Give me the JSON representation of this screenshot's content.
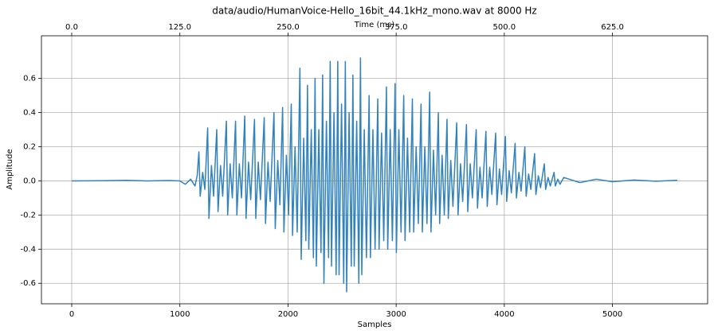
{
  "chart_data": {
    "type": "line",
    "title": "data/audio/HumanVoice-Hello_16bit_44.1kHz_mono.wav at  8000 Hz",
    "xlabel": "Samples",
    "ylabel": "Amplitude",
    "x2label": "Time (ms)",
    "xlim": [
      -280,
      5880
    ],
    "ylim": [
      -0.72,
      0.85
    ],
    "x2lim": [
      -35,
      735
    ],
    "xticks": [
      0,
      1000,
      2000,
      3000,
      4000,
      5000
    ],
    "yticks": [
      -0.6,
      -0.4,
      -0.2,
      {
        "value": 0,
        "label": "0.0"
      },
      0.2,
      0.4,
      0.6
    ],
    "x2ticks": [
      {
        "value": 0,
        "label": "0.0"
      },
      {
        "value": 125,
        "label": "125.0"
      },
      {
        "value": 250,
        "label": "250.0"
      },
      {
        "value": 375,
        "label": "375.0"
      },
      {
        "value": 500,
        "label": "500.0"
      },
      {
        "value": 625,
        "label": "625.0"
      }
    ],
    "grid": true,
    "series": [
      {
        "color": "#3182bd",
        "x": [
          0,
          300,
          500,
          700,
          900,
          1000,
          1050,
          1100,
          1140,
          1160,
          1176,
          1188,
          1211,
          1231,
          1257,
          1269,
          1292,
          1312,
          1341,
          1353,
          1376,
          1396,
          1430,
          1442,
          1465,
          1485,
          1515,
          1527,
          1550,
          1570,
          1600,
          1612,
          1635,
          1655,
          1690,
          1702,
          1725,
          1745,
          1780,
          1792,
          1815,
          1835,
          1870,
          1882,
          1905,
          1925,
          1950,
          1962,
          1985,
          2005,
          2030,
          2042,
          2065,
          2085,
          2110,
          2122,
          2145,
          2165,
          2180,
          2192,
          2215,
          2235,
          2250,
          2262,
          2285,
          2305,
          2320,
          2332,
          2355,
          2375,
          2390,
          2402,
          2425,
          2445,
          2460,
          2472,
          2495,
          2515,
          2530,
          2542,
          2565,
          2585,
          2600,
          2612,
          2635,
          2655,
          2670,
          2682,
          2705,
          2725,
          2750,
          2762,
          2785,
          2805,
          2830,
          2842,
          2865,
          2885,
          2910,
          2922,
          2945,
          2965,
          2990,
          3002,
          3025,
          3045,
          3070,
          3082,
          3105,
          3125,
          3150,
          3162,
          3185,
          3205,
          3230,
          3242,
          3265,
          3285,
          3310,
          3322,
          3345,
          3365,
          3390,
          3402,
          3425,
          3445,
          3470,
          3482,
          3505,
          3525,
          3560,
          3572,
          3595,
          3615,
          3650,
          3662,
          3685,
          3705,
          3740,
          3752,
          3775,
          3795,
          3830,
          3842,
          3865,
          3885,
          3920,
          3932,
          3955,
          3975,
          4010,
          4022,
          4045,
          4065,
          4100,
          4112,
          4135,
          4155,
          4190,
          4202,
          4225,
          4245,
          4280,
          4292,
          4315,
          4335,
          4370,
          4382,
          4405,
          4425,
          4460,
          4472,
          4495,
          4515,
          4550,
          4700,
          4850,
          5000,
          5200,
          5400,
          5600
        ],
        "values": [
          0,
          0.001,
          0.003,
          0,
          0.002,
          0,
          -0.02,
          0.01,
          -0.03,
          0.03,
          0.17,
          -0.09,
          0.05,
          -0.05,
          0.31,
          -0.22,
          0.09,
          -0.09,
          0.3,
          -0.18,
          0.09,
          -0.09,
          0.35,
          -0.2,
          0.1,
          -0.1,
          0.35,
          -0.2,
          0.1,
          -0.1,
          0.38,
          -0.22,
          0.11,
          -0.11,
          0.36,
          -0.22,
          0.11,
          -0.11,
          0.37,
          -0.25,
          0.11,
          -0.12,
          0.4,
          -0.28,
          0.12,
          -0.14,
          0.43,
          -0.3,
          0.15,
          -0.2,
          0.45,
          -0.32,
          0.2,
          -0.3,
          0.66,
          -0.46,
          0.25,
          -0.35,
          0.56,
          -0.4,
          0.3,
          -0.45,
          0.6,
          -0.5,
          0.3,
          -0.42,
          0.62,
          -0.6,
          0.35,
          -0.45,
          0.7,
          -0.5,
          0.4,
          -0.55,
          0.7,
          -0.55,
          0.45,
          -0.6,
          0.7,
          -0.65,
          0.4,
          -0.5,
          0.62,
          -0.5,
          0.35,
          -0.6,
          0.72,
          -0.55,
          0.3,
          -0.45,
          0.5,
          -0.45,
          0.3,
          -0.4,
          0.48,
          -0.4,
          0.28,
          -0.35,
          0.55,
          -0.4,
          0.3,
          -0.35,
          0.57,
          -0.42,
          0.3,
          -0.3,
          0.5,
          -0.35,
          0.25,
          -0.3,
          0.48,
          -0.3,
          0.2,
          -0.25,
          0.45,
          -0.3,
          0.2,
          -0.25,
          0.52,
          -0.3,
          0.18,
          -0.2,
          0.4,
          -0.25,
          0.15,
          -0.2,
          0.36,
          -0.22,
          0.12,
          -0.15,
          0.34,
          -0.2,
          0.1,
          -0.12,
          0.33,
          -0.18,
          0.1,
          -0.1,
          0.3,
          -0.16,
          0.08,
          -0.1,
          0.29,
          -0.15,
          0.08,
          -0.08,
          0.28,
          -0.14,
          0.07,
          -0.08,
          0.26,
          -0.12,
          0.06,
          -0.07,
          0.22,
          -0.1,
          0.05,
          -0.06,
          0.2,
          -0.09,
          0.04,
          -0.05,
          0.16,
          -0.08,
          0.03,
          -0.04,
          0.1,
          -0.05,
          0.02,
          -0.03,
          0.05,
          -0.03,
          0.01,
          -0.02,
          0.02,
          -0.01,
          0.01,
          -0.005,
          0.005,
          -0.002,
          0.003
        ]
      }
    ]
  }
}
